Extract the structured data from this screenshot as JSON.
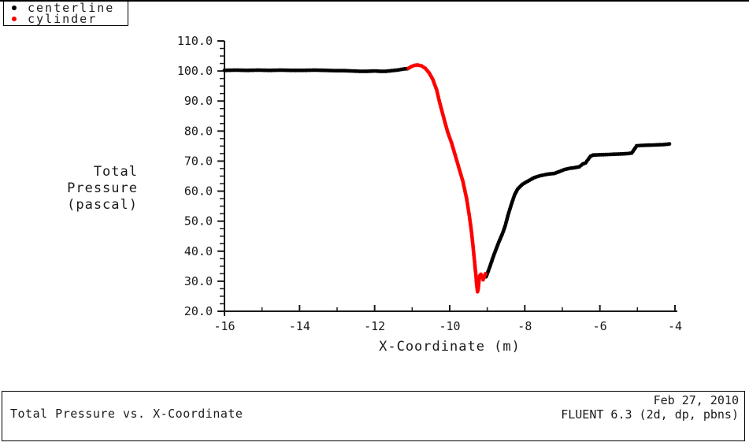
{
  "legend": {
    "items": [
      {
        "label": "centerline",
        "color": "#000000"
      },
      {
        "label": "cylinder",
        "color": "#ff0000"
      }
    ]
  },
  "footer": {
    "title": "Total Pressure vs. X-Coordinate",
    "date": "Feb 27, 2010",
    "solver": "FLUENT 6.3 (2d, dp, pbns)"
  },
  "chart_data": {
    "type": "scatter",
    "title": "Total Pressure vs. X-Coordinate",
    "xlabel": "X-Coordinate (m)",
    "ylabel_lines": [
      "Total",
      "Pressure",
      "(pascal)"
    ],
    "xlim": [
      -16,
      -4
    ],
    "ylim": [
      20,
      110
    ],
    "xticks_major": [
      -16,
      -14,
      -12,
      -10,
      -8,
      -6,
      -4
    ],
    "xticks_minor": [
      -15,
      -13,
      -11,
      -9,
      -7,
      -5
    ],
    "yticks_major": [
      20,
      30,
      40,
      50,
      60,
      70,
      80,
      90,
      100,
      110
    ],
    "ytick_minor_step": 2.5,
    "ytick_label_decimals": 1,
    "grid": false,
    "legend_position": "top-left",
    "series": [
      {
        "name": "centerline",
        "color": "#000000",
        "marker": "dot",
        "segments": [
          [
            [
              -16.0,
              100.2
            ],
            [
              -15.7,
              100.3
            ],
            [
              -15.4,
              100.2
            ],
            [
              -15.1,
              100.3
            ],
            [
              -14.8,
              100.2
            ],
            [
              -14.5,
              100.3
            ],
            [
              -14.2,
              100.2
            ],
            [
              -13.9,
              100.2
            ],
            [
              -13.6,
              100.3
            ],
            [
              -13.3,
              100.2
            ],
            [
              -13.0,
              100.1
            ],
            [
              -12.8,
              100.1
            ],
            [
              -12.6,
              100.0
            ],
            [
              -12.4,
              99.9
            ],
            [
              -12.2,
              99.9
            ],
            [
              -12.0,
              100.0
            ],
            [
              -11.85,
              99.9
            ],
            [
              -11.7,
              99.9
            ],
            [
              -11.55,
              100.1
            ],
            [
              -11.4,
              100.3
            ],
            [
              -11.3,
              100.5
            ],
            [
              -11.2,
              100.7
            ],
            [
              -11.12,
              100.8
            ]
          ],
          [
            [
              -9.03,
              31.5
            ],
            [
              -9.0,
              32.5
            ],
            [
              -8.97,
              33.5
            ],
            [
              -8.92,
              35.2
            ],
            [
              -8.85,
              37.8
            ],
            [
              -8.77,
              40.5
            ],
            [
              -8.69,
              43.1
            ],
            [
              -8.6,
              45.7
            ],
            [
              -8.52,
              48.5
            ],
            [
              -8.44,
              52.3
            ],
            [
              -8.35,
              55.9
            ],
            [
              -8.27,
              58.8
            ],
            [
              -8.19,
              60.7
            ],
            [
              -8.06,
              62.3
            ],
            [
              -7.92,
              63.3
            ],
            [
              -7.75,
              64.5
            ],
            [
              -7.6,
              65.1
            ],
            [
              -7.45,
              65.5
            ],
            [
              -7.35,
              65.7
            ],
            [
              -7.21,
              65.9
            ],
            [
              -7.08,
              66.5
            ],
            [
              -6.94,
              67.2
            ],
            [
              -6.8,
              67.6
            ],
            [
              -6.67,
              67.8
            ],
            [
              -6.55,
              68.1
            ],
            [
              -6.46,
              69.0
            ],
            [
              -6.38,
              69.4
            ],
            [
              -6.31,
              70.6
            ],
            [
              -6.25,
              71.6
            ],
            [
              -6.18,
              72.0
            ],
            [
              -6.0,
              72.1
            ],
            [
              -5.8,
              72.2
            ],
            [
              -5.6,
              72.3
            ],
            [
              -5.4,
              72.4
            ],
            [
              -5.25,
              72.5
            ],
            [
              -5.15,
              72.7
            ],
            [
              -5.09,
              73.8
            ],
            [
              -5.02,
              75.1
            ],
            [
              -4.9,
              75.2
            ],
            [
              -4.7,
              75.3
            ],
            [
              -4.5,
              75.4
            ],
            [
              -4.3,
              75.5
            ],
            [
              -4.15,
              75.7
            ]
          ]
        ]
      },
      {
        "name": "cylinder",
        "color": "#ff0000",
        "marker": "dot",
        "segments": [
          [
            [
              -11.1,
              100.9
            ],
            [
              -11.02,
              101.5
            ],
            [
              -10.93,
              101.9
            ],
            [
              -10.85,
              102.0
            ],
            [
              -10.75,
              101.7
            ],
            [
              -10.65,
              100.9
            ],
            [
              -10.55,
              99.4
            ],
            [
              -10.45,
              97.2
            ],
            [
              -10.35,
              93.8
            ],
            [
              -10.27,
              89.6
            ],
            [
              -10.15,
              84.0
            ],
            [
              -10.05,
              79.5
            ],
            [
              -9.96,
              76.4
            ],
            [
              -9.85,
              71.8
            ],
            [
              -9.75,
              67.5
            ],
            [
              -9.65,
              63.3
            ],
            [
              -9.55,
              57.5
            ],
            [
              -9.48,
              52.0
            ],
            [
              -9.42,
              46.5
            ],
            [
              -9.37,
              40.5
            ],
            [
              -9.33,
              35.5
            ],
            [
              -9.3,
              31.5
            ],
            [
              -9.28,
              28.5
            ],
            [
              -9.26,
              26.5
            ],
            [
              -9.24,
              27.5
            ],
            [
              -9.22,
              30.0
            ],
            [
              -9.2,
              31.8
            ],
            [
              -9.17,
              32.3
            ],
            [
              -9.14,
              31.3
            ],
            [
              -9.11,
              30.5
            ],
            [
              -9.08,
              31.5
            ],
            [
              -9.05,
              32.5
            ]
          ]
        ]
      }
    ]
  }
}
